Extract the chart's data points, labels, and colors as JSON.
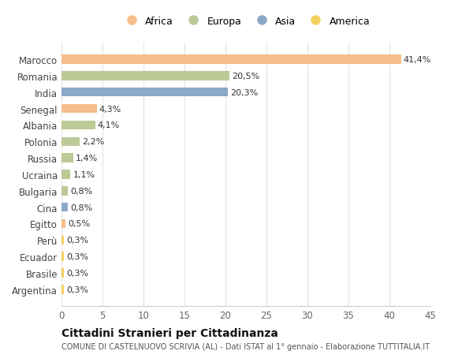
{
  "countries": [
    "Marocco",
    "Romania",
    "India",
    "Senegal",
    "Albania",
    "Polonia",
    "Russia",
    "Ucraina",
    "Bulgaria",
    "Cina",
    "Egitto",
    "Perù",
    "Ecuador",
    "Brasile",
    "Argentina"
  ],
  "values": [
    41.4,
    20.5,
    20.3,
    4.3,
    4.1,
    2.2,
    1.4,
    1.1,
    0.8,
    0.8,
    0.5,
    0.3,
    0.3,
    0.3,
    0.3
  ],
  "labels": [
    "41,4%",
    "20,5%",
    "20,3%",
    "4,3%",
    "4,1%",
    "2,2%",
    "1,4%",
    "1,1%",
    "0,8%",
    "0,8%",
    "0,5%",
    "0,3%",
    "0,3%",
    "0,3%",
    "0,3%"
  ],
  "continents": [
    "Africa",
    "Europa",
    "Asia",
    "Africa",
    "Europa",
    "Europa",
    "Europa",
    "Europa",
    "Europa",
    "Asia",
    "Africa",
    "America",
    "America",
    "America",
    "America"
  ],
  "colors": {
    "Africa": "#F5BE8C",
    "Europa": "#BBCA96",
    "Asia": "#8BA8C8",
    "America": "#F5D060"
  },
  "legend_order": [
    "Africa",
    "Europa",
    "Asia",
    "America"
  ],
  "legend_colors": {
    "Africa": "#F5BE8C",
    "Europa": "#BBCA96",
    "Asia": "#8BA8C8",
    "America": "#F5D060"
  },
  "background_color": "#ffffff",
  "plot_bg_color": "#ffffff",
  "grid_color": "#e8e8e8",
  "title": "Cittadini Stranieri per Cittadinanza",
  "subtitle": "COMUNE DI CASTELNUOVO SCRIVIA (AL) - Dati ISTAT al 1° gennaio - Elaborazione TUTTITALIA.IT",
  "xlim": [
    0,
    45
  ],
  "xticks": [
    0,
    5,
    10,
    15,
    20,
    25,
    30,
    35,
    40,
    45
  ],
  "bar_height": 0.55,
  "label_fontsize": 8,
  "ytick_fontsize": 8.5,
  "xtick_fontsize": 8.5
}
